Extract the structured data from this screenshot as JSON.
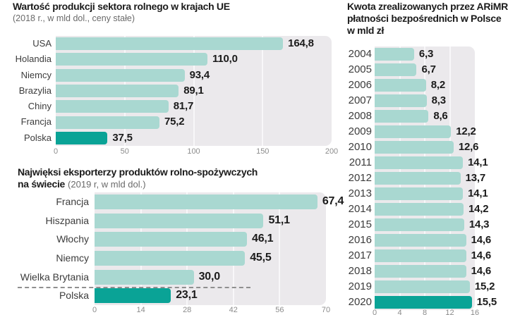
{
  "colors": {
    "bar": "#a9d8d1",
    "bar_highlight": "#0aa396",
    "plot_background": "#ebe9ec",
    "gridline": "#f8f7f9",
    "title_text": "#1b1b1b",
    "subtitle_text": "#6a6a6a",
    "category_text": "#3c3c3c",
    "value_text": "#1b1b1b",
    "axis_text": "#8c8c8c",
    "separator": "#8f8f8f",
    "page_background": "#ffffff"
  },
  "chart_data": [
    {
      "type": "bar",
      "orientation": "horizontal",
      "title": "Wartość produkcji sektora rolnego w krajach UE",
      "subtitle": "(2018 r., w mld dol., ceny stałe)",
      "categories": [
        "USA",
        "Holandia",
        "Niemcy",
        "Brazylia",
        "Chiny",
        "Francja",
        "Polska"
      ],
      "values": [
        164.8,
        110.0,
        93.4,
        89.1,
        81.7,
        75.2,
        37.5
      ],
      "value_labels": [
        "164,8",
        "110,0",
        "93,4",
        "89,1",
        "81,7",
        "75,2",
        "37,5"
      ],
      "highlight_index": 6,
      "xlim": [
        0,
        200
      ],
      "tick_labels": [
        "0",
        "50",
        "100",
        "150",
        "200"
      ],
      "grid": true,
      "legend": false
    },
    {
      "type": "bar",
      "orientation": "horizontal",
      "title_line1": "Najwięksi eksporterzy produktów rolno-spożywczych",
      "title_line2_bold": "na świecie",
      "title_line2_note": "(2019 r, w mld dol.)",
      "categories": [
        "Francja",
        "Hiszpania",
        "Włochy",
        "Niemcy",
        "Wielka Brytania",
        "Polska"
      ],
      "values": [
        67.4,
        51.1,
        46.1,
        45.5,
        30.0,
        23.1
      ],
      "value_labels": [
        "67,4",
        "51,1",
        "46,1",
        "45,5",
        "30,0",
        "23,1"
      ],
      "highlight_index": 5,
      "separator_after_index": 4,
      "xlim": [
        0,
        70
      ],
      "tick_labels": [
        "0",
        "14",
        "28",
        "42",
        "56",
        "70"
      ],
      "grid": true,
      "legend": false
    },
    {
      "type": "bar",
      "orientation": "horizontal",
      "title_lines": [
        "Kwota zrealizowanych przez ARiMR",
        "płatności bezpośrednich w Polsce",
        "w mld zł"
      ],
      "categories": [
        "2004",
        "2005",
        "2006",
        "2007",
        "2008",
        "2009",
        "2010",
        "2011",
        "2012",
        "2013",
        "2014",
        "2015",
        "2016",
        "2017",
        "2018",
        "2019",
        "2020"
      ],
      "values": [
        6.3,
        6.7,
        8.2,
        8.3,
        8.6,
        12.2,
        12.6,
        14.1,
        13.7,
        14.1,
        14.2,
        14.3,
        14.6,
        14.6,
        14.6,
        15.2,
        15.5
      ],
      "value_labels": [
        "6,3",
        "6,7",
        "8,2",
        "8,3",
        "8,6",
        "12,2",
        "12,6",
        "14,1",
        "13,7",
        "14,1",
        "14,2",
        "14,3",
        "14,6",
        "14,6",
        "14,6",
        "15,2",
        "15,5"
      ],
      "highlight_index": 16,
      "xlim": [
        0,
        16
      ],
      "tick_labels": [
        "0",
        "4",
        "8",
        "12",
        "16"
      ],
      "grid": true,
      "legend": false
    }
  ]
}
